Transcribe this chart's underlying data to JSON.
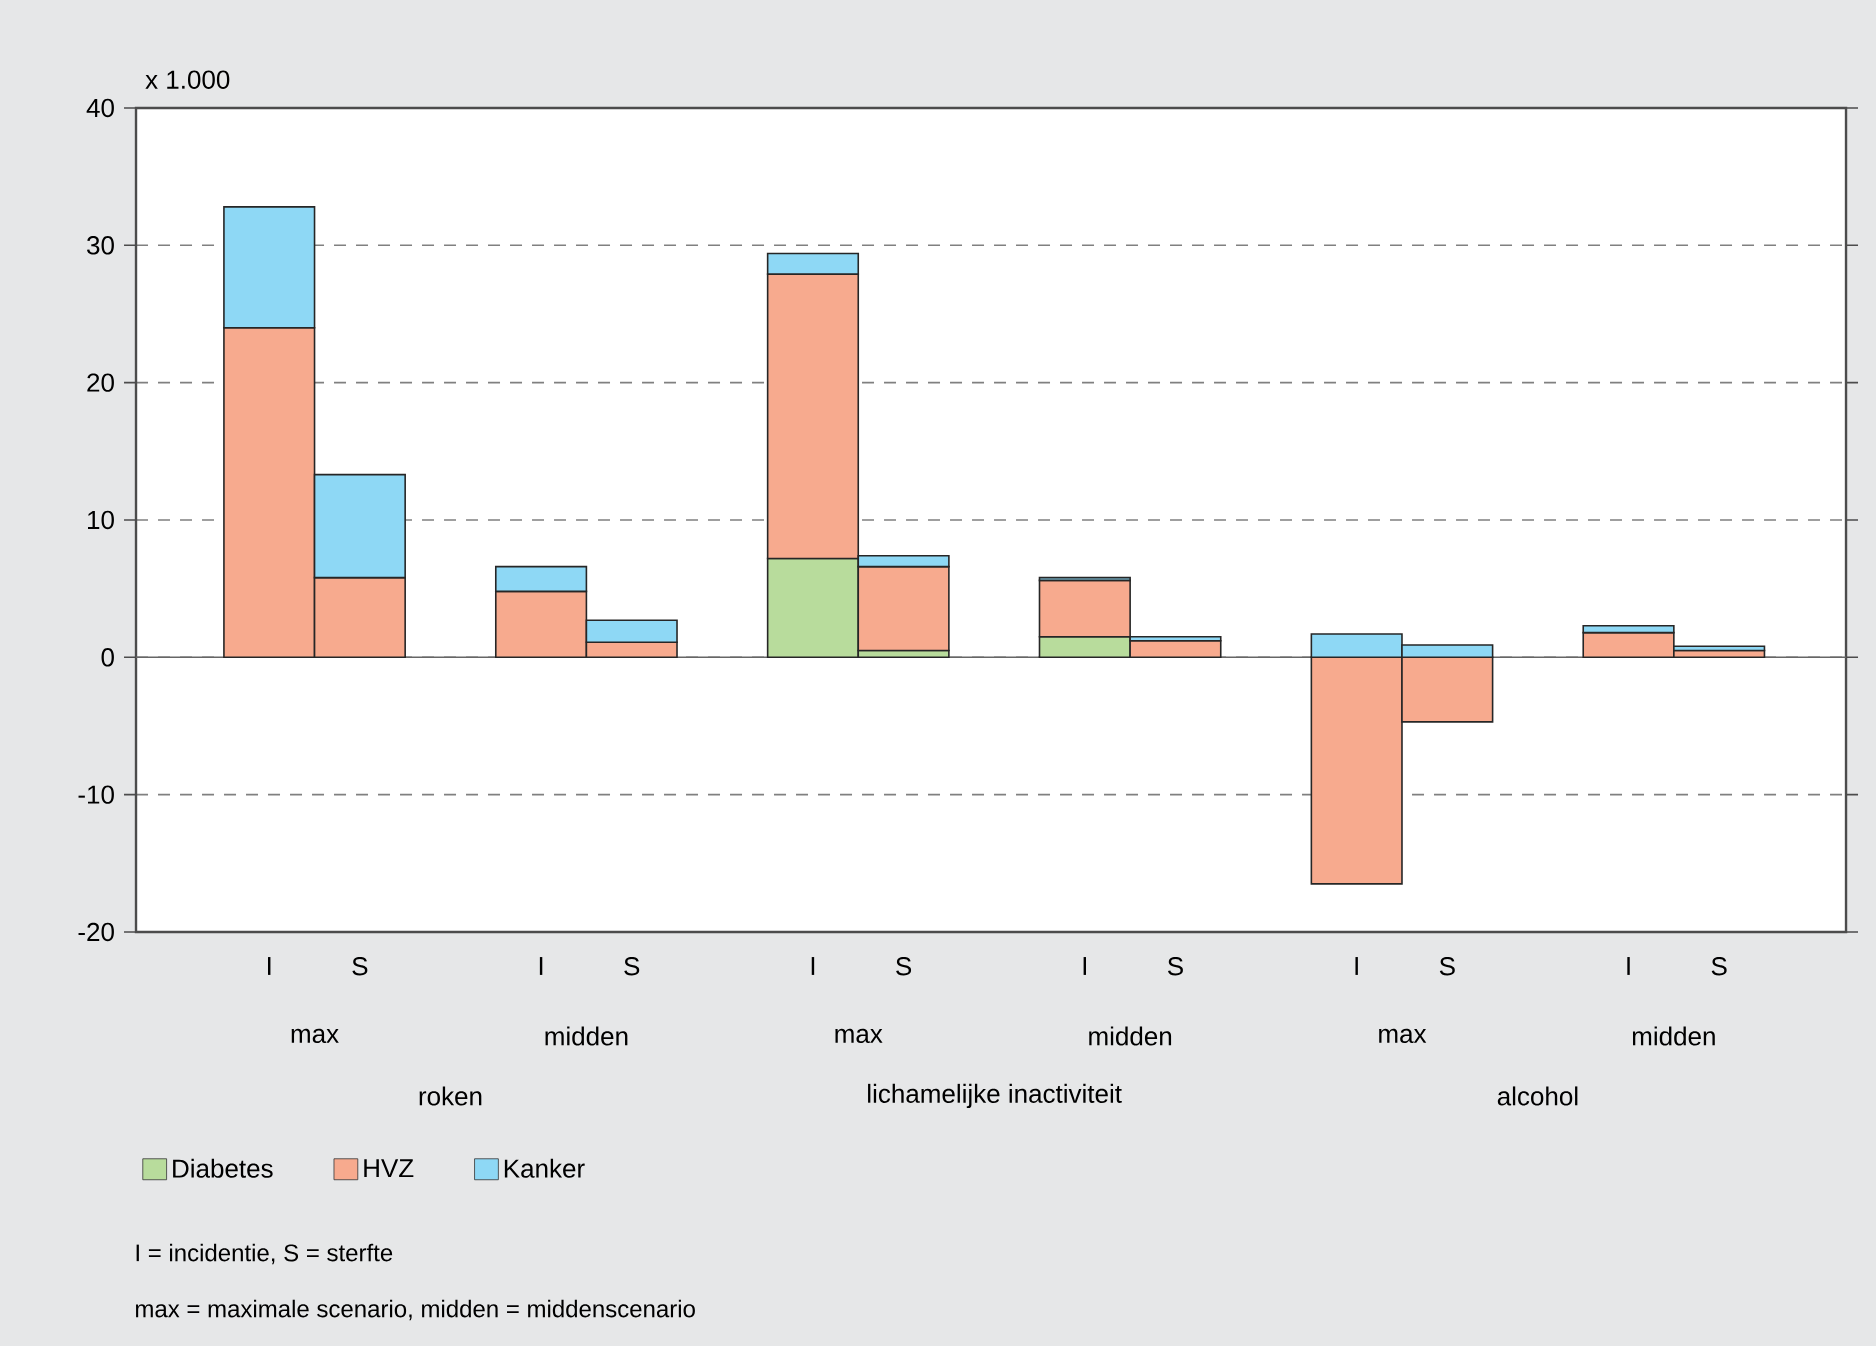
{
  "chart_data": {
    "type": "bar",
    "stacked": true,
    "ylabel": "x 1.000",
    "categories": [
      "I",
      "S",
      "I",
      "S",
      "I",
      "S",
      "I",
      "S",
      "I",
      "S",
      "I",
      "S"
    ],
    "series": [
      {
        "name": "Diabetes",
        "color": "#b8dc9c",
        "values": [
          0,
          0,
          0,
          0,
          7.2,
          0.5,
          1.5,
          0,
          0,
          0,
          0,
          0
        ]
      },
      {
        "name": "HVZ",
        "color": "#f7aa8e",
        "values": [
          24.0,
          5.8,
          4.8,
          1.1,
          20.7,
          6.1,
          4.1,
          1.2,
          -16.5,
          -4.7,
          1.8,
          0.5
        ]
      },
      {
        "name": "Kanker",
        "color": "#8ed8f5",
        "values": [
          8.8,
          7.5,
          1.8,
          1.6,
          1.5,
          0.8,
          0.2,
          0.3,
          1.7,
          0.9,
          0.5,
          0.3
        ]
      }
    ],
    "ylim": [
      -20,
      40
    ],
    "yticks": [
      -20,
      -10,
      0,
      10,
      20,
      30,
      40
    ],
    "grid": "y",
    "legend": "bottom",
    "annotations": [
      "max",
      "midden",
      "max",
      "midden",
      "max",
      "midden",
      "roken",
      "lichamelijke inactiviteit",
      "alcohol",
      "I = incidentie, S = sterfte",
      "max = maximale scenario, midden = middenscenario"
    ]
  }
}
